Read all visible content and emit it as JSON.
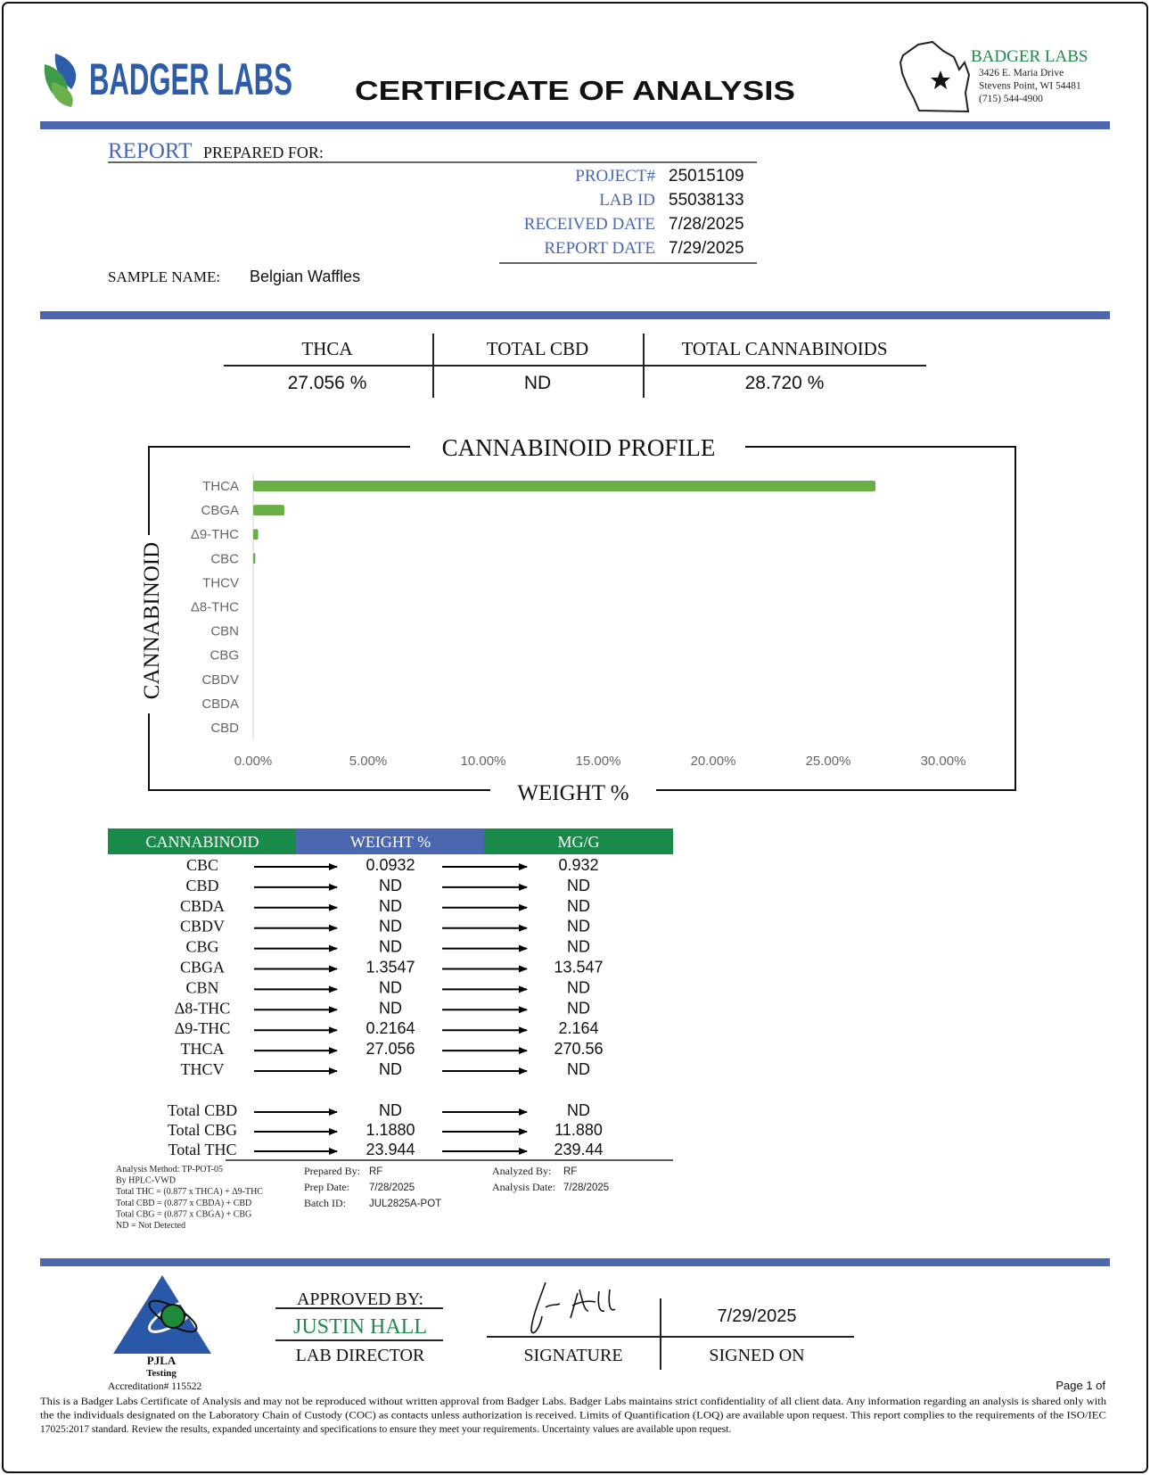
{
  "header": {
    "brand": "BADGER LABS",
    "title": "CERTIFICATE OF ANALYSIS",
    "lab_name": "BADGER LABS",
    "address": [
      "3426 E. Maria Drive",
      "Stevens Point, WI 54481",
      "(715) 544-4900"
    ]
  },
  "report": {
    "report_label": "REPORT",
    "prepared_for": "PREPARED FOR:",
    "fields": [
      {
        "label": "PROJECT#",
        "value": "25015109"
      },
      {
        "label": "LAB ID",
        "value": "55038133"
      },
      {
        "label": "RECEIVED DATE",
        "value": "7/28/2025"
      },
      {
        "label": "REPORT DATE",
        "value": "7/29/2025"
      }
    ],
    "sample_label": "SAMPLE NAME:",
    "sample_name": "Belgian Waffles"
  },
  "summary": {
    "headers": [
      "THCA",
      "TOTAL CBD",
      "TOTAL CANNABINOIDS"
    ],
    "values": [
      "27.056 %",
      "ND",
      "28.720 %"
    ]
  },
  "chart_data": {
    "type": "bar",
    "orientation": "horizontal",
    "title": "CANNABINOID PROFILE",
    "x_label": "WEIGHT %",
    "y_label": "CANNABINOID",
    "categories": [
      "THCA",
      "CBGA",
      "Δ9-THC",
      "CBC",
      "THCV",
      "Δ8-THC",
      "CBN",
      "CBG",
      "CBDV",
      "CBDA",
      "CBD"
    ],
    "values": [
      27.056,
      1.3547,
      0.2164,
      0.0932,
      0,
      0,
      0,
      0,
      0,
      0,
      0
    ],
    "color": "#6aaf45",
    "xlim": [
      0,
      30
    ],
    "xticks": [
      {
        "value": 0,
        "label": "0.00%"
      },
      {
        "value": 5,
        "label": "5.00%"
      },
      {
        "value": 10,
        "label": "10.00%"
      },
      {
        "value": 15,
        "label": "15.00%"
      },
      {
        "value": 20,
        "label": "20.00%"
      },
      {
        "value": 25,
        "label": "25.00%"
      },
      {
        "value": 30,
        "label": "30.00%"
      }
    ],
    "grid": false
  },
  "table": {
    "columns": [
      "CANNABINOID",
      "WEIGHT %",
      "MG/G"
    ],
    "rows": [
      [
        "CBC",
        "0.0932",
        "0.932"
      ],
      [
        "CBD",
        "ND",
        "ND"
      ],
      [
        "CBDA",
        "ND",
        "ND"
      ],
      [
        "CBDV",
        "ND",
        "ND"
      ],
      [
        "CBG",
        "ND",
        "ND"
      ],
      [
        "CBGA",
        "1.3547",
        "13.547"
      ],
      [
        "CBN",
        "ND",
        "ND"
      ],
      [
        "Δ8-THC",
        "ND",
        "ND"
      ],
      [
        "Δ9-THC",
        "0.2164",
        "2.164"
      ],
      [
        "THCA",
        "27.056",
        "270.56"
      ],
      [
        "THCV",
        "ND",
        "ND"
      ]
    ],
    "totals": [
      [
        "Total CBD",
        "ND",
        "ND"
      ],
      [
        "Total CBG",
        "1.1880",
        "11.880"
      ],
      [
        "Total THC",
        "23.944",
        "239.44"
      ]
    ]
  },
  "method": {
    "notes": [
      "Analysis Method: TP-POT-05",
      "By HPLC-VWD",
      "Total THC = (0.877 x  THCA) + Δ9-THC",
      "Total CBD = (0.877 x  CBDA) + CBD",
      "Total CBG = (0.877 x  CBGA) + CBG",
      "ND = Not Detected"
    ],
    "prep": [
      {
        "label": "Prepared By:",
        "value": "RF"
      },
      {
        "label": "Prep Date:",
        "value": "7/28/2025"
      },
      {
        "label": "Batch ID:",
        "value": "JUL2825A-POT"
      }
    ],
    "analysis": [
      {
        "label": "Analyzed By:",
        "value": "RF"
      },
      {
        "label": "Analysis Date:",
        "value": "7/28/2025"
      }
    ]
  },
  "footer": {
    "approved_label": "APPROVED BY:",
    "approver": "JUSTIN HALL",
    "role": "LAB DIRECTOR",
    "signature_label": "SIGNATURE",
    "signed_date": "7/29/2025",
    "signed_on_label": "SIGNED ON",
    "pjla": "PJLA",
    "testing": "Testing",
    "accreditation": "Accreditation# 115522",
    "page": "Page 1 of",
    "disclaimer": [
      "This is a Badger Labs Certificate of Analysis and may not be reproduced without written approval from Badger Labs. Badger Labs maintains strict confidentiality of all client data. Any information regarding an analysis is shared only with",
      "the the individuals designated on the Laboratory Chain of Custody (COC) as contacts unless authorization is received. Limits of Quantification (LOQ) are available upon request. This report complies to the requirements of the ISO/IEC",
      "17025:2017 standard. Review the results, expanded uncertainty and specifications to ensure they meet your requirements. Uncertainty values are available upon request."
    ]
  }
}
